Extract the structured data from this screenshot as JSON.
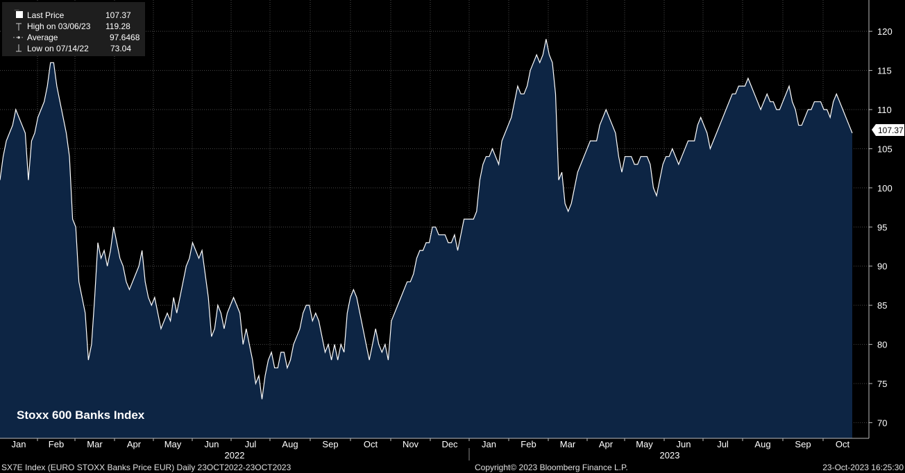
{
  "legend": {
    "items": [
      {
        "label": "Last Price",
        "value": "107.37",
        "marker": "white-square-icon"
      },
      {
        "label": "High on 03/06/23",
        "value": "119.28",
        "marker": "high-marker-icon"
      },
      {
        "label": "Average",
        "value": "97.6468",
        "marker": "average-marker-icon"
      },
      {
        "label": "Low on 07/14/22",
        "value": "73.04",
        "marker": "low-marker-icon"
      }
    ]
  },
  "chart_title": "Stoxx 600 Banks Index",
  "footer": {
    "ticker": "SX7E Index (EURO STOXX Banks Price EUR)  Daily 23OCT2022-23OCT2023",
    "copyright": "Copyright© 2023 Bloomberg Finance L.P.",
    "timestamp": "23-Oct-2023 16:25:30"
  },
  "colors": {
    "background": "#000000",
    "fill": "#0d2544",
    "line": "#ffffff",
    "grid": "#4a4a4a",
    "legend_bg": "#1e1e1e"
  },
  "chart_data": {
    "type": "area",
    "title": "Stoxx 600 Banks Index",
    "ylim": [
      68,
      124
    ],
    "grid": true,
    "y_ticks": [
      70,
      75,
      80,
      85,
      90,
      95,
      100,
      105,
      110,
      115,
      120
    ],
    "x_month_labels": [
      "Jan",
      "Feb",
      "Mar",
      "Apr",
      "May",
      "Jun",
      "Jul",
      "Aug",
      "Sep",
      "Oct",
      "Nov",
      "Dec",
      "Jan",
      "Feb",
      "Mar",
      "Apr",
      "May",
      "Jun",
      "Jul",
      "Aug",
      "Sep",
      "Oct"
    ],
    "x_year_labels": [
      "2022",
      "2023"
    ],
    "last_value_label": "107.37",
    "series": [
      {
        "values": [
          101,
          104,
          106,
          107,
          108,
          110,
          109,
          108,
          107,
          101,
          106,
          107,
          109,
          110,
          111,
          113,
          116,
          116,
          113,
          111,
          109,
          107,
          104,
          96,
          95,
          88,
          86,
          84,
          78,
          80,
          86,
          93,
          91,
          92,
          90,
          92,
          95,
          93,
          91,
          90,
          88,
          87,
          88,
          89,
          90,
          92,
          88,
          86,
          85,
          86,
          84,
          82,
          83,
          84,
          83,
          86,
          84,
          86,
          88,
          90,
          91,
          93,
          92,
          91,
          92,
          89,
          86,
          81,
          82,
          85,
          84,
          82,
          84,
          85,
          86,
          85,
          84,
          80,
          82,
          80,
          78,
          75,
          76,
          73,
          76,
          78,
          79,
          77,
          77,
          79,
          79,
          77,
          78,
          80,
          81,
          82,
          84,
          85,
          85,
          83,
          84,
          83,
          81,
          79,
          80,
          78,
          80,
          78,
          80,
          79,
          84,
          86,
          87,
          86,
          84,
          82,
          80,
          78,
          80,
          82,
          80,
          79,
          80,
          78,
          83,
          84,
          85,
          86,
          87,
          88,
          88,
          89,
          91,
          92,
          92,
          93,
          93,
          95,
          95,
          94,
          94,
          94,
          93,
          93,
          94,
          92,
          94,
          96,
          96,
          96,
          96,
          97,
          101,
          103,
          104,
          104,
          105,
          104,
          103,
          106,
          107,
          108,
          109,
          111,
          113,
          112,
          112,
          113,
          115,
          116,
          117,
          116,
          117,
          119,
          117,
          116,
          112,
          101,
          102,
          98,
          97,
          98,
          100,
          102,
          103,
          104,
          105,
          106,
          106,
          106,
          108,
          109,
          110,
          109,
          108,
          107,
          104,
          102,
          104,
          104,
          104,
          103,
          103,
          104,
          104,
          104,
          103,
          100,
          99,
          101,
          103,
          104,
          104,
          105,
          104,
          103,
          104,
          105,
          106,
          106,
          106,
          108,
          109,
          108,
          107,
          105,
          106,
          107,
          108,
          109,
          110,
          111,
          112,
          112,
          113,
          113,
          113,
          114,
          113,
          112,
          111,
          110,
          111,
          112,
          111,
          111,
          110,
          110,
          111,
          112,
          113,
          111,
          110,
          108,
          108,
          109,
          110,
          110,
          111,
          111,
          111,
          110,
          110,
          109,
          111,
          112,
          111,
          110,
          109,
          108,
          107
        ]
      }
    ]
  }
}
